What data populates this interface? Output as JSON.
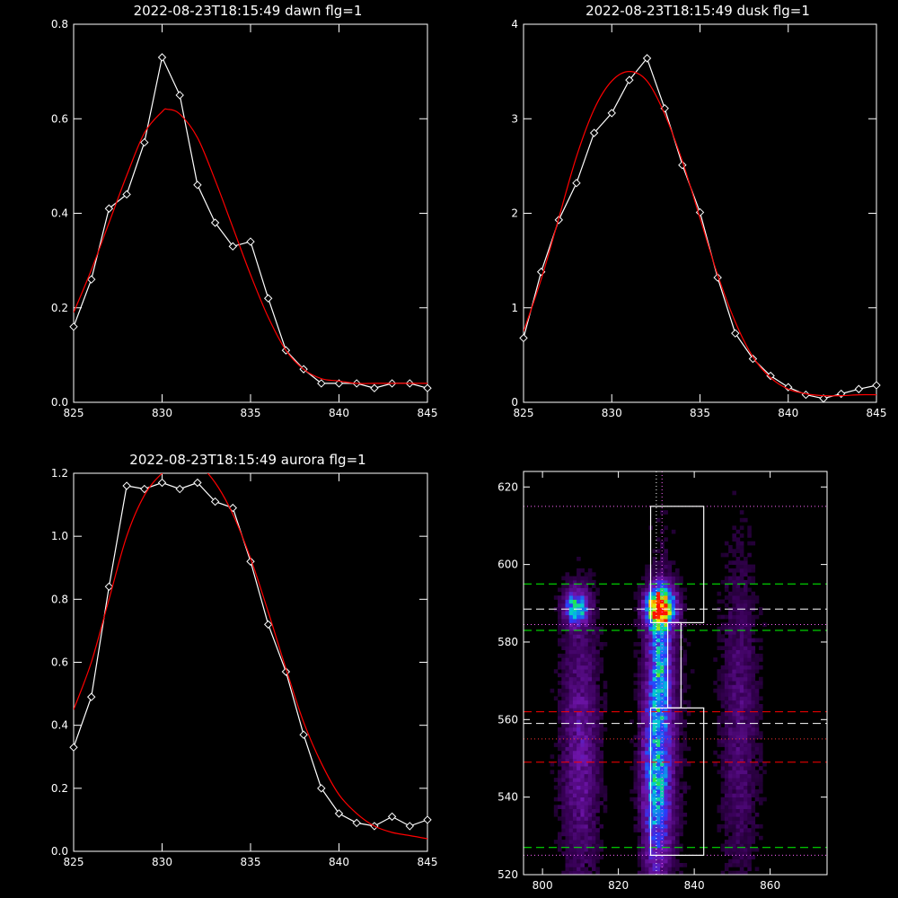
{
  "charts": [
    {
      "type": "line",
      "title": "2022-08-23T18:15:49 dawn flg=1",
      "xlim": [
        825,
        845
      ],
      "ylim": [
        0,
        0.8
      ],
      "xticks": [
        825,
        830,
        835,
        840,
        845
      ],
      "yticks": [
        0.0,
        0.2,
        0.4,
        0.6,
        0.8
      ],
      "yticklabels": [
        "0.0",
        "0.2",
        "0.4",
        "0.6",
        "0.8"
      ],
      "series": [
        {
          "color": "#ffffff",
          "markers": true,
          "x": [
            825,
            826,
            827,
            828,
            829,
            830,
            831,
            832,
            833,
            834,
            835,
            836,
            837,
            838,
            839,
            840,
            841,
            842,
            843,
            844,
            845
          ],
          "y": [
            0.16,
            0.26,
            0.41,
            0.44,
            0.55,
            0.73,
            0.65,
            0.46,
            0.38,
            0.33,
            0.34,
            0.22,
            0.11,
            0.07,
            0.04,
            0.04,
            0.04,
            0.03,
            0.04,
            0.04,
            0.03
          ]
        },
        {
          "color": "#ff0000",
          "markers": false,
          "x": [
            825,
            826,
            827,
            828,
            829,
            830,
            830.3,
            831,
            832,
            833,
            834,
            835,
            836,
            837,
            838,
            839,
            840,
            841,
            842,
            843,
            844,
            845
          ],
          "y": [
            0.19,
            0.28,
            0.38,
            0.48,
            0.57,
            0.615,
            0.62,
            0.61,
            0.56,
            0.47,
            0.37,
            0.27,
            0.18,
            0.11,
            0.07,
            0.05,
            0.045,
            0.04,
            0.04,
            0.04,
            0.04,
            0.04
          ]
        }
      ]
    },
    {
      "type": "line",
      "title": "2022-08-23T18:15:49 dusk flg=1",
      "xlim": [
        825,
        845
      ],
      "ylim": [
        0,
        4
      ],
      "xticks": [
        825,
        830,
        835,
        840,
        845
      ],
      "yticks": [
        0,
        1,
        2,
        3,
        4
      ],
      "yticklabels": [
        "0",
        "1",
        "2",
        "3",
        "4"
      ],
      "series": [
        {
          "color": "#ffffff",
          "markers": true,
          "x": [
            825,
            826,
            827,
            828,
            829,
            830,
            831,
            832,
            833,
            834,
            835,
            836,
            837,
            838,
            839,
            840,
            841,
            842,
            843,
            844,
            845
          ],
          "y": [
            0.68,
            1.38,
            1.93,
            2.32,
            2.85,
            3.06,
            3.41,
            3.64,
            3.11,
            2.51,
            2.01,
            1.32,
            0.73,
            0.46,
            0.28,
            0.16,
            0.08,
            0.04,
            0.09,
            0.14,
            0.18
          ]
        },
        {
          "color": "#ff0000",
          "markers": false,
          "x": [
            825,
            826,
            827,
            828,
            829,
            830,
            831,
            832,
            833,
            834,
            835,
            836,
            837,
            838,
            839,
            840,
            841,
            842,
            843,
            844,
            845
          ],
          "y": [
            0.75,
            1.3,
            1.95,
            2.6,
            3.1,
            3.4,
            3.5,
            3.4,
            3.05,
            2.55,
            1.95,
            1.35,
            0.85,
            0.48,
            0.26,
            0.14,
            0.09,
            0.07,
            0.07,
            0.08,
            0.08
          ]
        }
      ]
    },
    {
      "type": "line",
      "title": "2022-08-23T18:15:49 aurora flg=1",
      "xlim": [
        825,
        845
      ],
      "ylim": [
        0,
        1.2
      ],
      "xticks": [
        825,
        830,
        835,
        840,
        845
      ],
      "yticks": [
        0.0,
        0.2,
        0.4,
        0.6,
        0.8,
        1.0,
        1.2
      ],
      "yticklabels": [
        "0.0",
        "0.2",
        "0.4",
        "0.6",
        "0.8",
        "1.0",
        "1.2"
      ],
      "series": [
        {
          "color": "#ffffff",
          "markers": true,
          "x": [
            825,
            826,
            827,
            828,
            829,
            830,
            831,
            832,
            833,
            834,
            835,
            836,
            837,
            838,
            839,
            840,
            841,
            842,
            843,
            844,
            845
          ],
          "y": [
            0.33,
            0.49,
            0.84,
            1.16,
            1.15,
            1.17,
            1.15,
            1.17,
            1.11,
            1.09,
            0.92,
            0.72,
            0.57,
            0.37,
            0.2,
            0.12,
            0.09,
            0.08,
            0.11,
            0.08,
            0.1
          ]
        },
        {
          "color": "#ff0000",
          "markers": false,
          "x": [
            825,
            826,
            827,
            828,
            829,
            830,
            831,
            832,
            833,
            834,
            835,
            836,
            837,
            838,
            839,
            840,
            841,
            842,
            843,
            844,
            845
          ],
          "y": [
            0.45,
            0.6,
            0.8,
            1.0,
            1.13,
            1.2,
            1.24,
            1.23,
            1.17,
            1.07,
            0.93,
            0.76,
            0.58,
            0.41,
            0.28,
            0.18,
            0.12,
            0.08,
            0.06,
            0.05,
            0.04
          ]
        }
      ]
    },
    {
      "type": "heatmap",
      "title": "",
      "xlim": [
        795,
        875
      ],
      "ylim": [
        520,
        624
      ],
      "xticks": [
        800,
        820,
        840,
        860
      ],
      "yticks": [
        520,
        540,
        560,
        580,
        600,
        620
      ],
      "blobs": [
        {
          "x": 831,
          "y": 589,
          "sx": 2.5,
          "sy": 3.5,
          "amp": 1.0
        },
        {
          "x": 809,
          "y": 589,
          "sx": 2.2,
          "sy": 3.0,
          "amp": 0.55
        },
        {
          "x": 831,
          "y": 575,
          "sx": 1.8,
          "sy": 10,
          "amp": 0.35
        },
        {
          "x": 830,
          "y": 545,
          "sx": 2.5,
          "sy": 18,
          "amp": 0.45
        },
        {
          "x": 810,
          "y": 553,
          "sx": 3.5,
          "sy": 25,
          "amp": 0.22
        },
        {
          "x": 852,
          "y": 560,
          "sx": 3.5,
          "sy": 30,
          "amp": 0.15
        },
        {
          "x": 832,
          "y": 560,
          "sx": 4,
          "sy": 30,
          "amp": 0.12
        }
      ],
      "boxes": [
        {
          "x0": 828.5,
          "x1": 842.5,
          "y0": 585,
          "y1": 615
        },
        {
          "x0": 833,
          "x1": 836.5,
          "y0": 563,
          "y1": 585
        },
        {
          "x0": 828.5,
          "x1": 842.5,
          "y0": 525,
          "y1": 563
        }
      ],
      "hlines": [
        {
          "y": 615,
          "color": "#ff66ff",
          "style": "dot"
        },
        {
          "y": 595,
          "color": "#00ff00",
          "style": "dash"
        },
        {
          "y": 588.5,
          "color": "#ffffff",
          "style": "dash"
        },
        {
          "y": 584.5,
          "color": "#ff66ff",
          "style": "dot"
        },
        {
          "y": 583,
          "color": "#00ff00",
          "style": "dash"
        },
        {
          "y": 562,
          "color": "#ff0000",
          "style": "dash"
        },
        {
          "y": 559,
          "color": "#ffffff",
          "style": "dash"
        },
        {
          "y": 555,
          "color": "#ff3333",
          "style": "dot"
        },
        {
          "y": 549,
          "color": "#ff0000",
          "style": "dash"
        },
        {
          "y": 527,
          "color": "#00ff00",
          "style": "dash"
        },
        {
          "y": 525,
          "color": "#ff66ff",
          "style": "dot"
        }
      ],
      "vlines": [
        {
          "x": 830,
          "color": "#ffffff",
          "style": "dot"
        },
        {
          "x": 831.5,
          "color": "#ff66ff",
          "style": "dot"
        }
      ]
    }
  ]
}
